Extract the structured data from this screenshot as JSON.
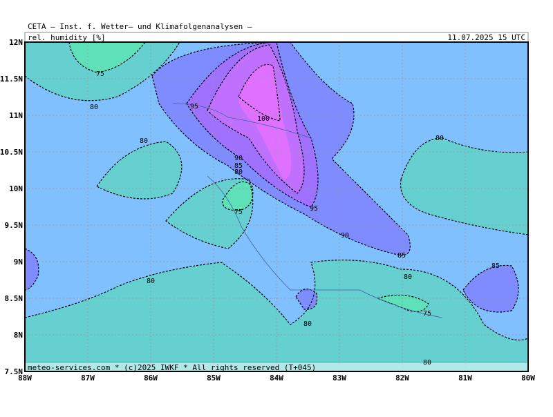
{
  "header": {
    "title": "CETA — Inst. f. Wetter— und Klimafolgenanalysen —",
    "variable": "rel._humidity_[%]",
    "valid_time": "11.07.2025 15 UTC"
  },
  "footer": "meteo-services.com * (c)2025 IWKF * All rights reserved (T+045)",
  "axes": {
    "y_labels": [
      "12N",
      "11.5N",
      "11N",
      "10.5N",
      "10N",
      "9.5N",
      "9N",
      "8.5N",
      "8N",
      "7.5N"
    ],
    "x_labels": [
      "88W",
      "87W",
      "86W",
      "85W",
      "84W",
      "83W",
      "82W",
      "81W",
      "80W"
    ]
  },
  "contour_labels": [
    "75",
    "80",
    "95",
    "100",
    "80",
    "90",
    "85",
    "80",
    "75",
    "95",
    "90",
    "85",
    "80",
    "85",
    "80",
    "75",
    "80",
    "80",
    "80"
  ]
}
